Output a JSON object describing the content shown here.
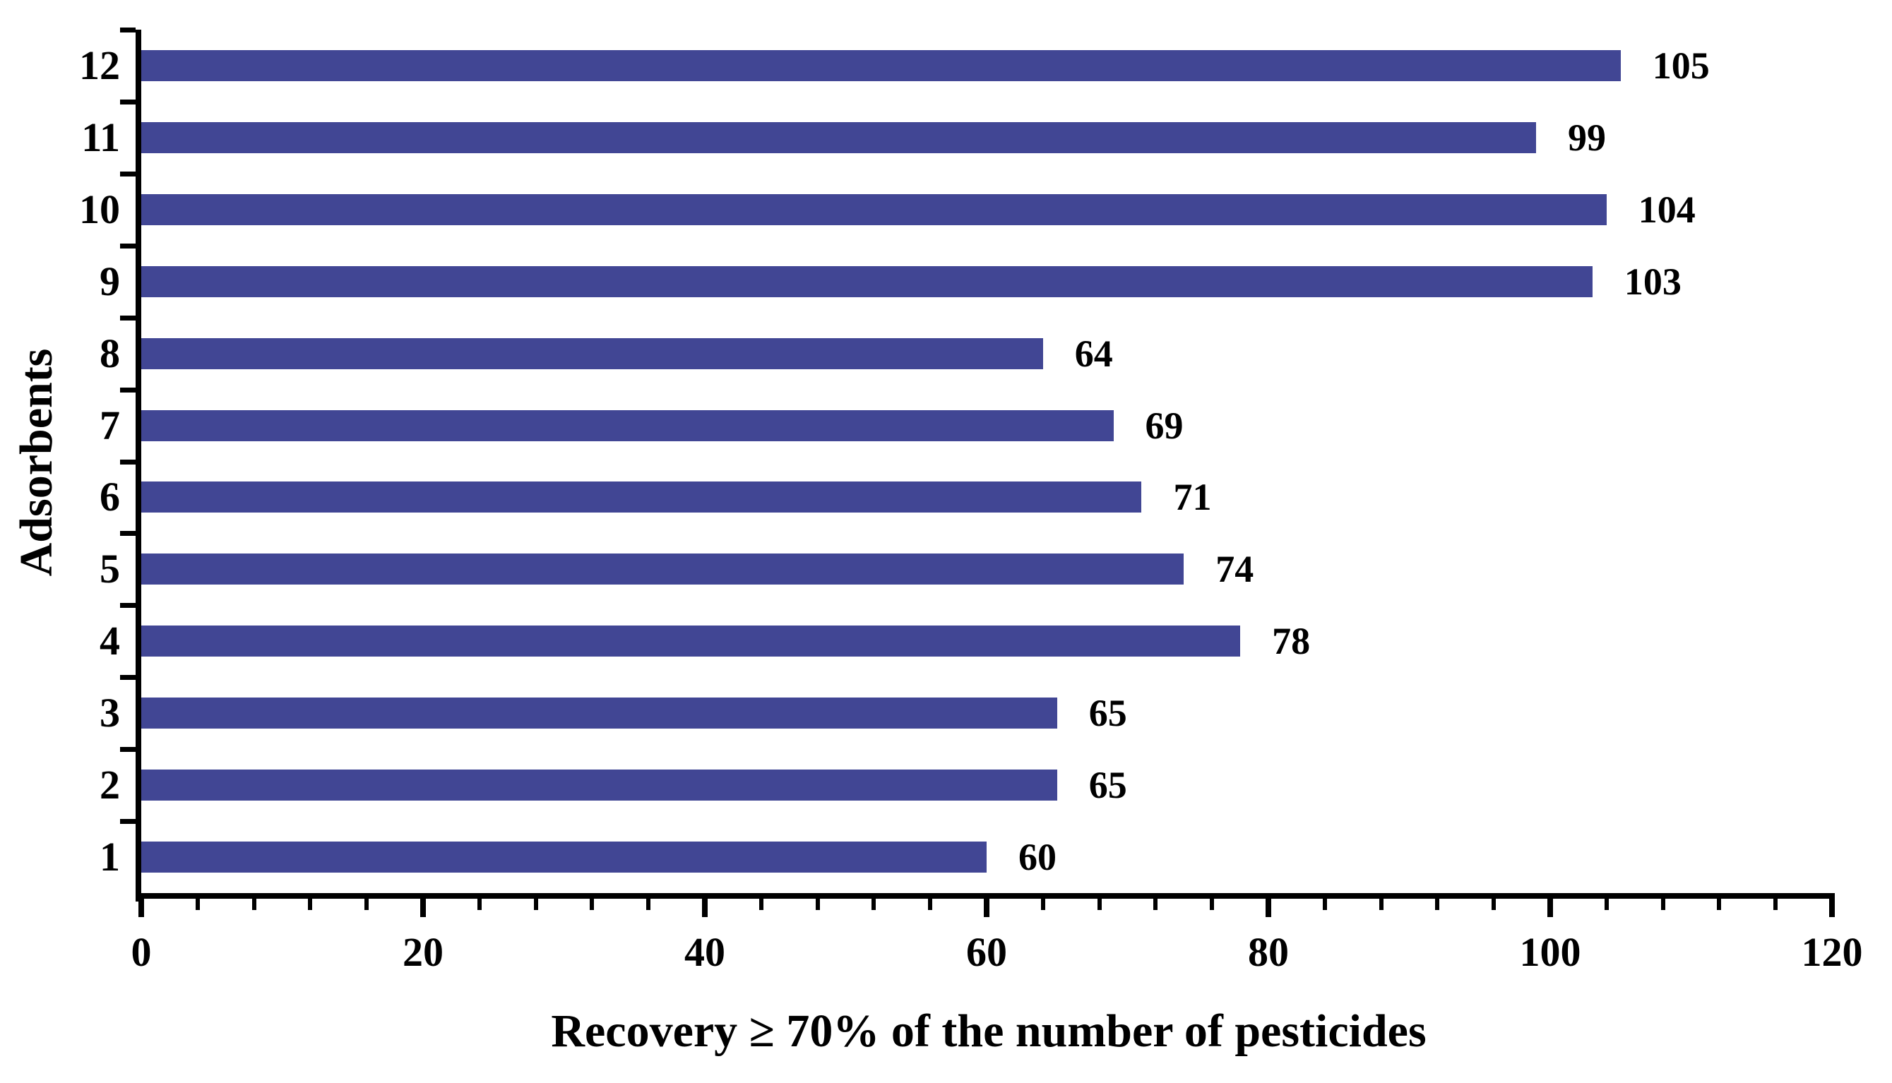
{
  "chart_data": {
    "type": "bar",
    "orientation": "horizontal",
    "title": "",
    "xlabel": "Recovery ≥ 70% of the number of pesticides",
    "ylabel": "Adsorbents",
    "categories": [
      "1",
      "2",
      "3",
      "4",
      "5",
      "6",
      "7",
      "8",
      "9",
      "10",
      "11",
      "12"
    ],
    "values": [
      60,
      65,
      65,
      78,
      74,
      71,
      69,
      64,
      103,
      104,
      99,
      105
    ],
    "value_labels": [
      "60",
      "65",
      "65",
      "78",
      "74",
      "71",
      "69",
      "64",
      "103",
      "104",
      "99",
      "105"
    ],
    "xlim": [
      0,
      120
    ],
    "x_ticks": [
      0,
      20,
      40,
      60,
      80,
      100,
      120
    ],
    "x_minor_tick_step": 4,
    "grid": "off",
    "legend": "none",
    "bar_color": "#414694",
    "axis_color": "#000000",
    "text_color": "#000000",
    "background_color": "#FFFFFF"
  }
}
